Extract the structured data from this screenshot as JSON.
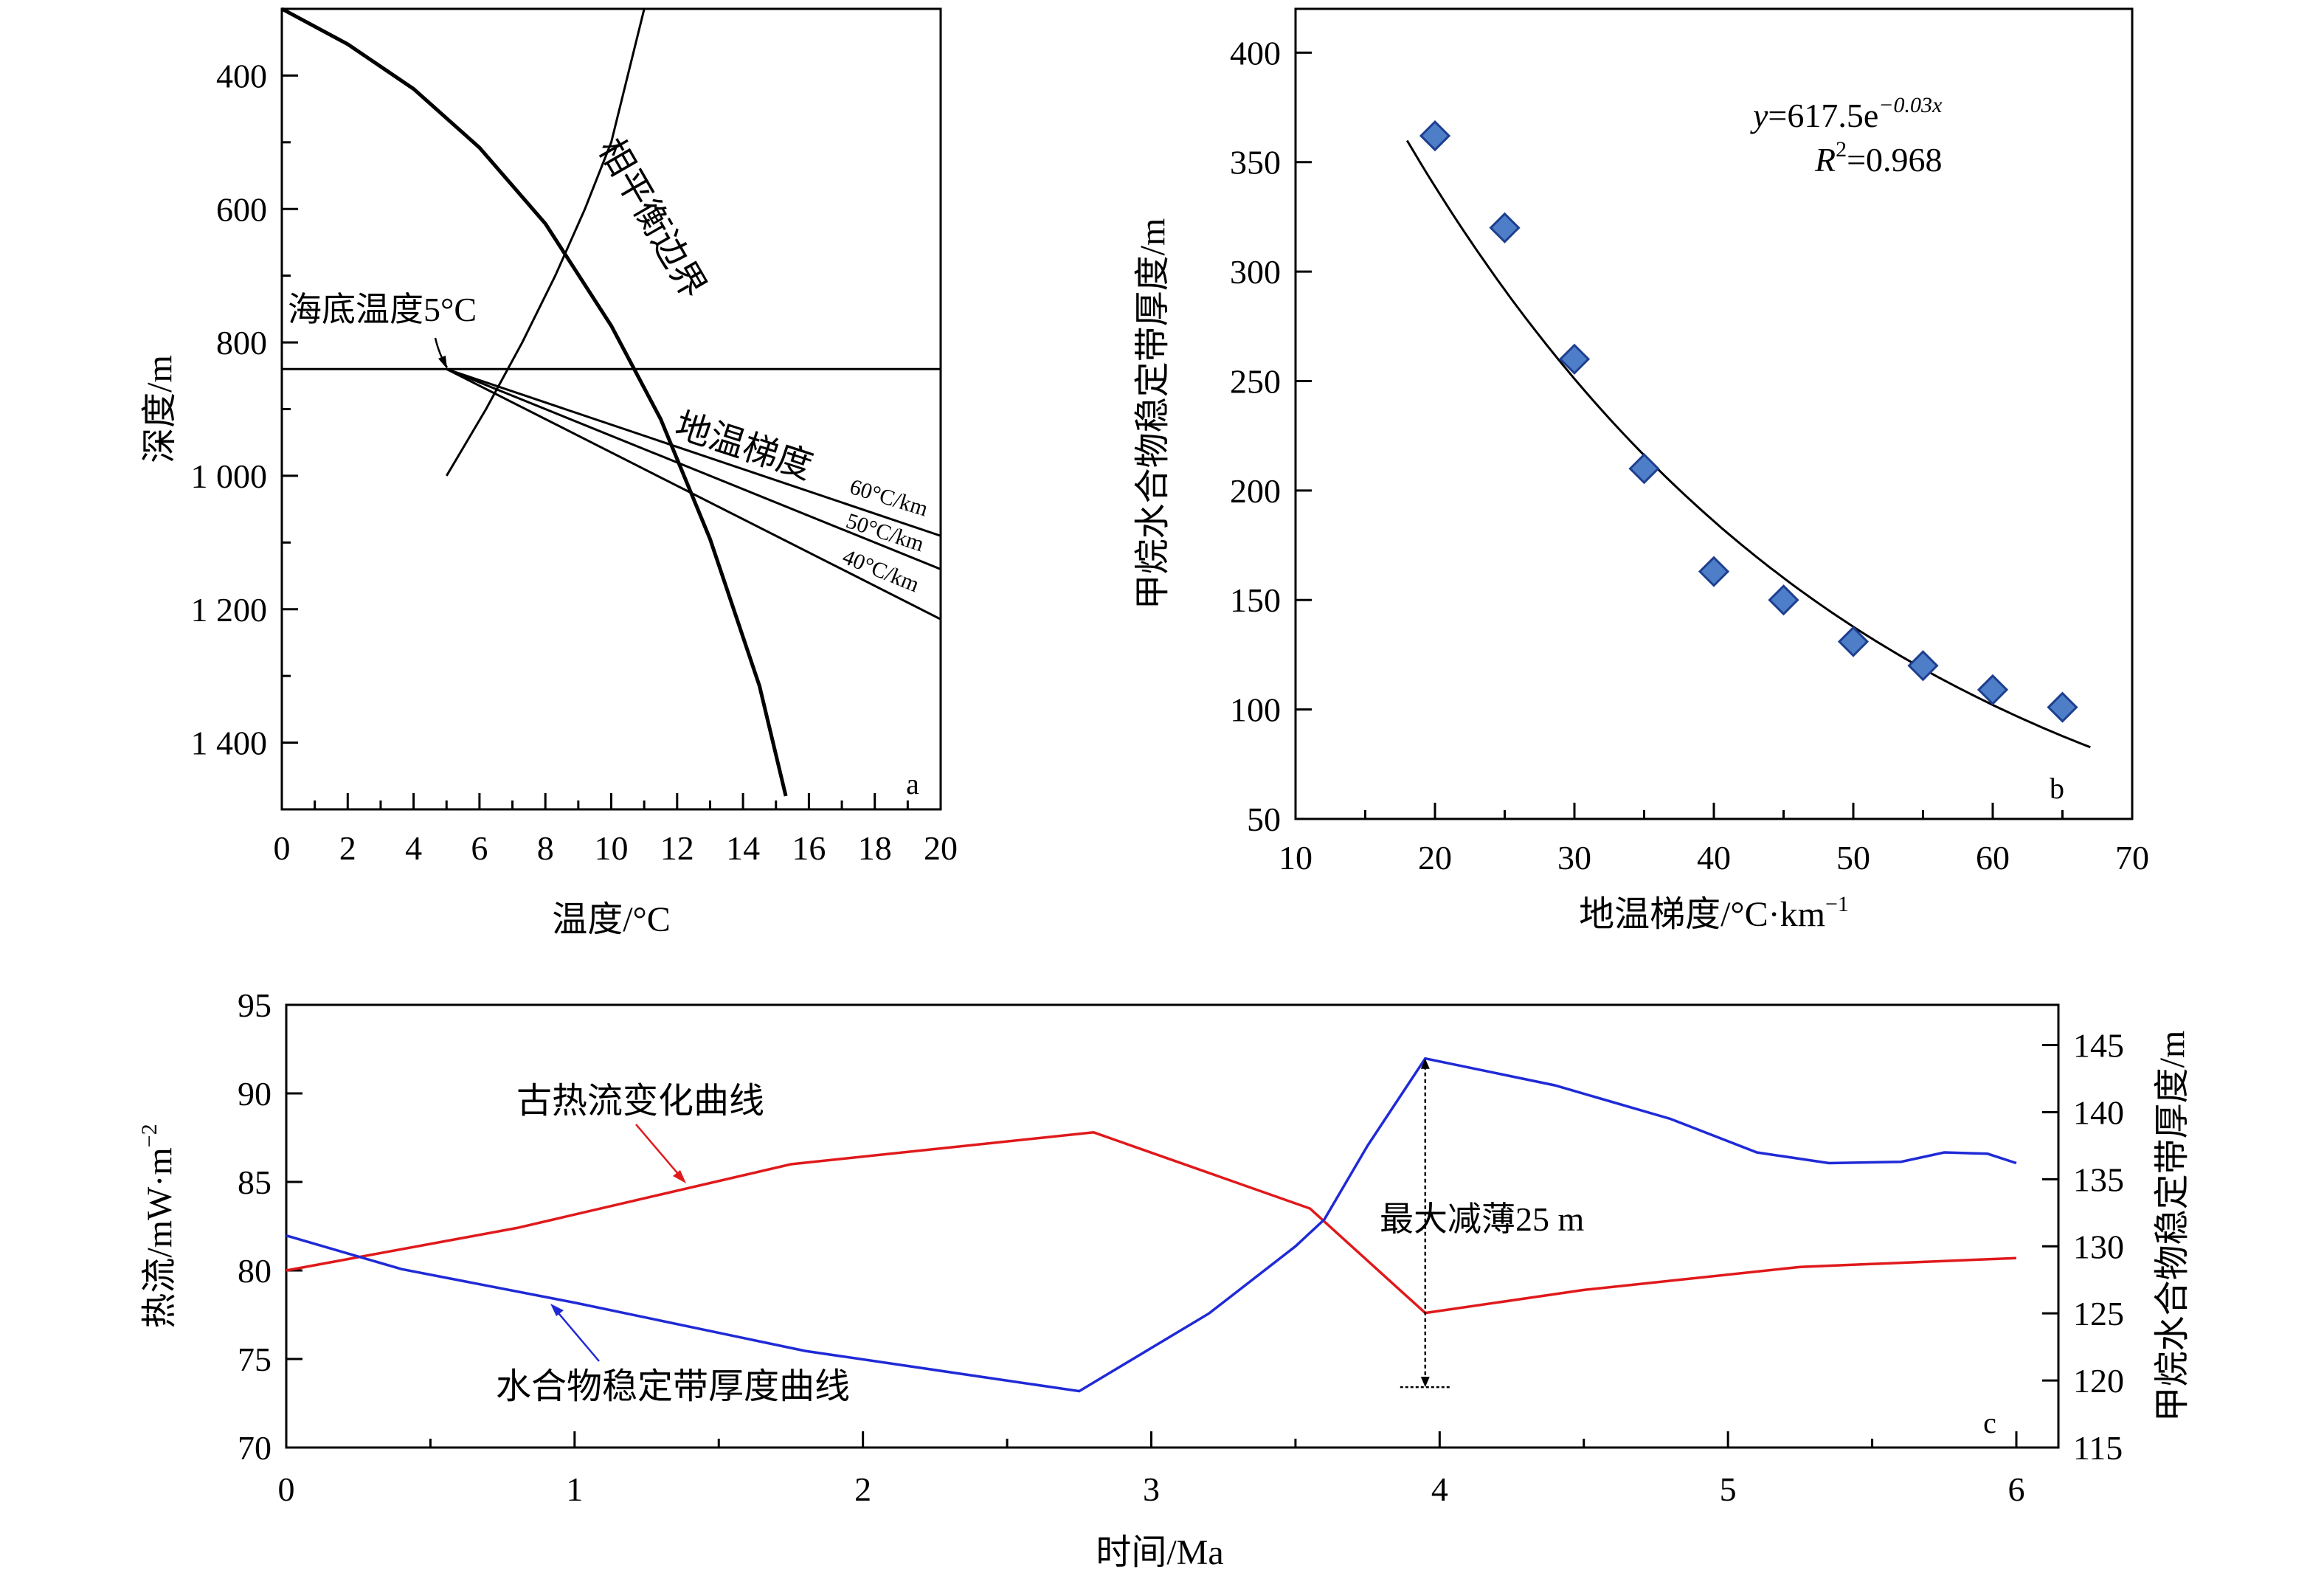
{
  "colors": {
    "ink": "#000000",
    "red": "#e0191b",
    "blue": "#1f2ad6",
    "marker": "#4f7ec9",
    "marker_edge": "#1d3f8f"
  },
  "chart_data": [
    {
      "panel": "a",
      "type": "line",
      "xlabel": "温度/°C",
      "ylabel": "深度/m",
      "xlim": [
        0,
        20
      ],
      "ylim": [
        300,
        1500
      ],
      "y_inverted": true,
      "x_ticks": [
        "0",
        "2",
        "4",
        "6",
        "8",
        "10",
        "12",
        "14",
        "16",
        "18",
        "20"
      ],
      "y_ticks": [
        {
          "v": 400,
          "label": "400"
        },
        {
          "v": 600,
          "label": "600"
        },
        {
          "v": 800,
          "label": "800"
        },
        {
          "v": 1000,
          "label": "1 000"
        },
        {
          "v": 1200,
          "label": "1 200"
        },
        {
          "v": 1400,
          "label": "1 400"
        }
      ],
      "seafloor_depth": 840,
      "annotations": {
        "phase_boundary": "相平衡边界",
        "seafloor_temp": "海底温度5°C",
        "geothermal": "地温梯度",
        "g60": "60°C/km",
        "g50": "50°C/km",
        "g40": "40°C/km"
      },
      "phase_boundary": {
        "x": [
          11.0,
          10.0,
          9.2,
          8.3,
          7.3,
          6.2,
          5.0
        ],
        "y": [
          300,
          500,
          600,
          700,
          800,
          900,
          1000
        ]
      },
      "hydrate_stability_curve": {
        "x": [
          0,
          2,
          4,
          6,
          8,
          10,
          11.5,
          13,
          14.5,
          15.3
        ],
        "y": [
          300,
          353,
          420,
          508,
          622,
          775,
          915,
          1095,
          1315,
          1480
        ]
      },
      "gradients": [
        {
          "name": "60°C/km",
          "x": [
            5,
            20
          ],
          "y": [
            840,
            1090
          ]
        },
        {
          "name": "50°C/km",
          "x": [
            5,
            20
          ],
          "y": [
            840,
            1140
          ]
        },
        {
          "name": "40°C/km",
          "x": [
            5,
            20
          ],
          "y": [
            840,
            1215
          ]
        }
      ]
    },
    {
      "panel": "b",
      "type": "scatter",
      "xlabel": "地温梯度/°C·km",
      "xlabel_sup": "−1",
      "ylabel": "甲烷水合物稳定带厚度/m",
      "xlim": [
        10,
        70
      ],
      "ylim": [
        50,
        420
      ],
      "x_ticks": [
        "10",
        "20",
        "30",
        "40",
        "50",
        "60",
        "70"
      ],
      "y_ticks": [
        "50",
        "100",
        "150",
        "200",
        "250",
        "300",
        "350",
        "400"
      ],
      "x": [
        20,
        25,
        30,
        35,
        40,
        45,
        50,
        55,
        60,
        65
      ],
      "y": [
        362,
        320,
        260,
        210,
        163,
        150,
        131,
        120,
        109,
        101
      ],
      "fit": {
        "a": 617.5,
        "b": -0.03,
        "x_range": [
          18,
          67
        ]
      },
      "equation": {
        "y": "y",
        "eq": "=617.5e",
        "exp": "−0.03x",
        "r": "R",
        "r2_sup": "2",
        "r2_val": "=0.968"
      }
    },
    {
      "panel": "c",
      "type": "line",
      "xlabel": "时间/Ma",
      "ylabel_left": "热流/mW·m",
      "ylabel_left_sup": "−2",
      "ylabel_right": "甲烷水合物稳定带厚度/m",
      "xlim": [
        0,
        6
      ],
      "ylim_left": [
        70,
        95
      ],
      "ylim_right": [
        115,
        148
      ],
      "x_ticks": [
        "0",
        "1",
        "2",
        "3",
        "4",
        "5",
        "6"
      ],
      "y_left_ticks": [
        "70",
        "75",
        "80",
        "85",
        "90",
        "95"
      ],
      "y_right_ticks": [
        "115",
        "120",
        "125",
        "130",
        "135",
        "140",
        "145"
      ],
      "series": [
        {
          "name": "古热流变化曲线",
          "axis": "left",
          "x": [
            0,
            0.8,
            1.75,
            2.8,
            3.55,
            3.95,
            4.5,
            5.25,
            6.0
          ],
          "y": [
            80.0,
            82.4,
            86.0,
            87.8,
            83.5,
            77.6,
            78.9,
            80.2,
            80.7
          ]
        },
        {
          "name": "水合物稳定带厚度曲线",
          "axis": "right",
          "x": [
            0,
            0.4,
            1.0,
            1.8,
            2.75,
            3.2,
            3.5,
            3.6,
            3.75,
            3.95,
            4.4,
            4.8,
            5.1,
            5.35,
            5.6,
            5.75,
            5.9,
            6.0
          ],
          "y": [
            130.8,
            128.3,
            125.8,
            122.2,
            119.2,
            125.0,
            130.0,
            132.0,
            137.5,
            144.0,
            142.0,
            139.5,
            137.0,
            136.2,
            136.3,
            137.0,
            136.9,
            136.2
          ]
        }
      ],
      "annotation": "最大减薄25 m",
      "annotation_range": [
        119.5,
        144
      ]
    }
  ],
  "panel_labels": {
    "a": "a",
    "b": "b",
    "c": "c"
  }
}
